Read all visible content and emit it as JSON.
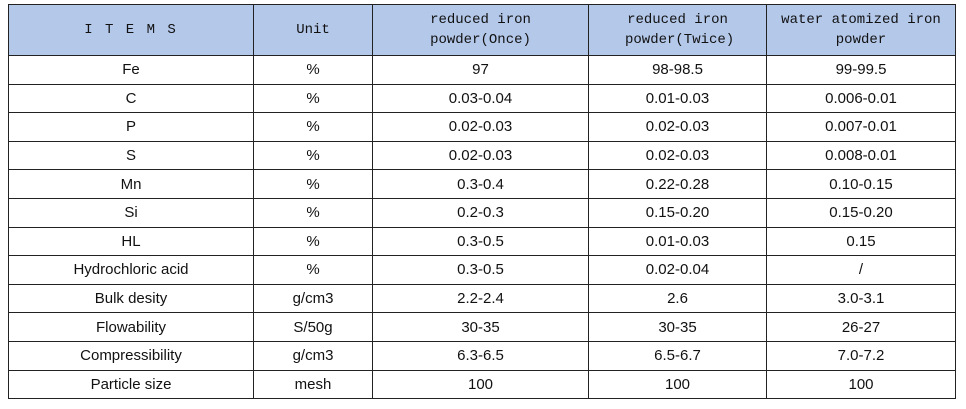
{
  "table": {
    "header": [
      "I T E M S",
      "Unit",
      "reduced iron powder(Once)",
      "reduced iron powder(Twice)",
      "water atomized iron powder"
    ],
    "rows": [
      [
        "Fe",
        "%",
        "97",
        "98-98.5",
        "99-99.5"
      ],
      [
        "C",
        "%",
        "0.03-0.04",
        "0.01-0.03",
        "0.006-0.01"
      ],
      [
        "P",
        "%",
        "0.02-0.03",
        "0.02-0.03",
        "0.007-0.01"
      ],
      [
        "S",
        "%",
        "0.02-0.03",
        "0.02-0.03",
        "0.008-0.01"
      ],
      [
        "Mn",
        "%",
        "0.3-0.4",
        "0.22-0.28",
        "0.10-0.15"
      ],
      [
        "Si",
        "%",
        "0.2-0.3",
        "0.15-0.20",
        "0.15-0.20"
      ],
      [
        "HL",
        "%",
        "0.3-0.5",
        "0.01-0.03",
        "0.15"
      ],
      [
        "Hydrochloric acid",
        "%",
        "0.3-0.5",
        "0.02-0.04",
        "/"
      ],
      [
        "Bulk desity",
        "g/cm3",
        "2.2-2.4",
        "2.6",
        "3.0-3.1"
      ],
      [
        "Flowability",
        "S/50g",
        "30-35",
        "30-35",
        "26-27"
      ],
      [
        "Compressibility",
        "g/cm3",
        "6.3-6.5",
        "6.5-6.7",
        "7.0-7.2"
      ],
      [
        "Particle size",
        "mesh",
        "100",
        "100",
        "100"
      ]
    ]
  }
}
